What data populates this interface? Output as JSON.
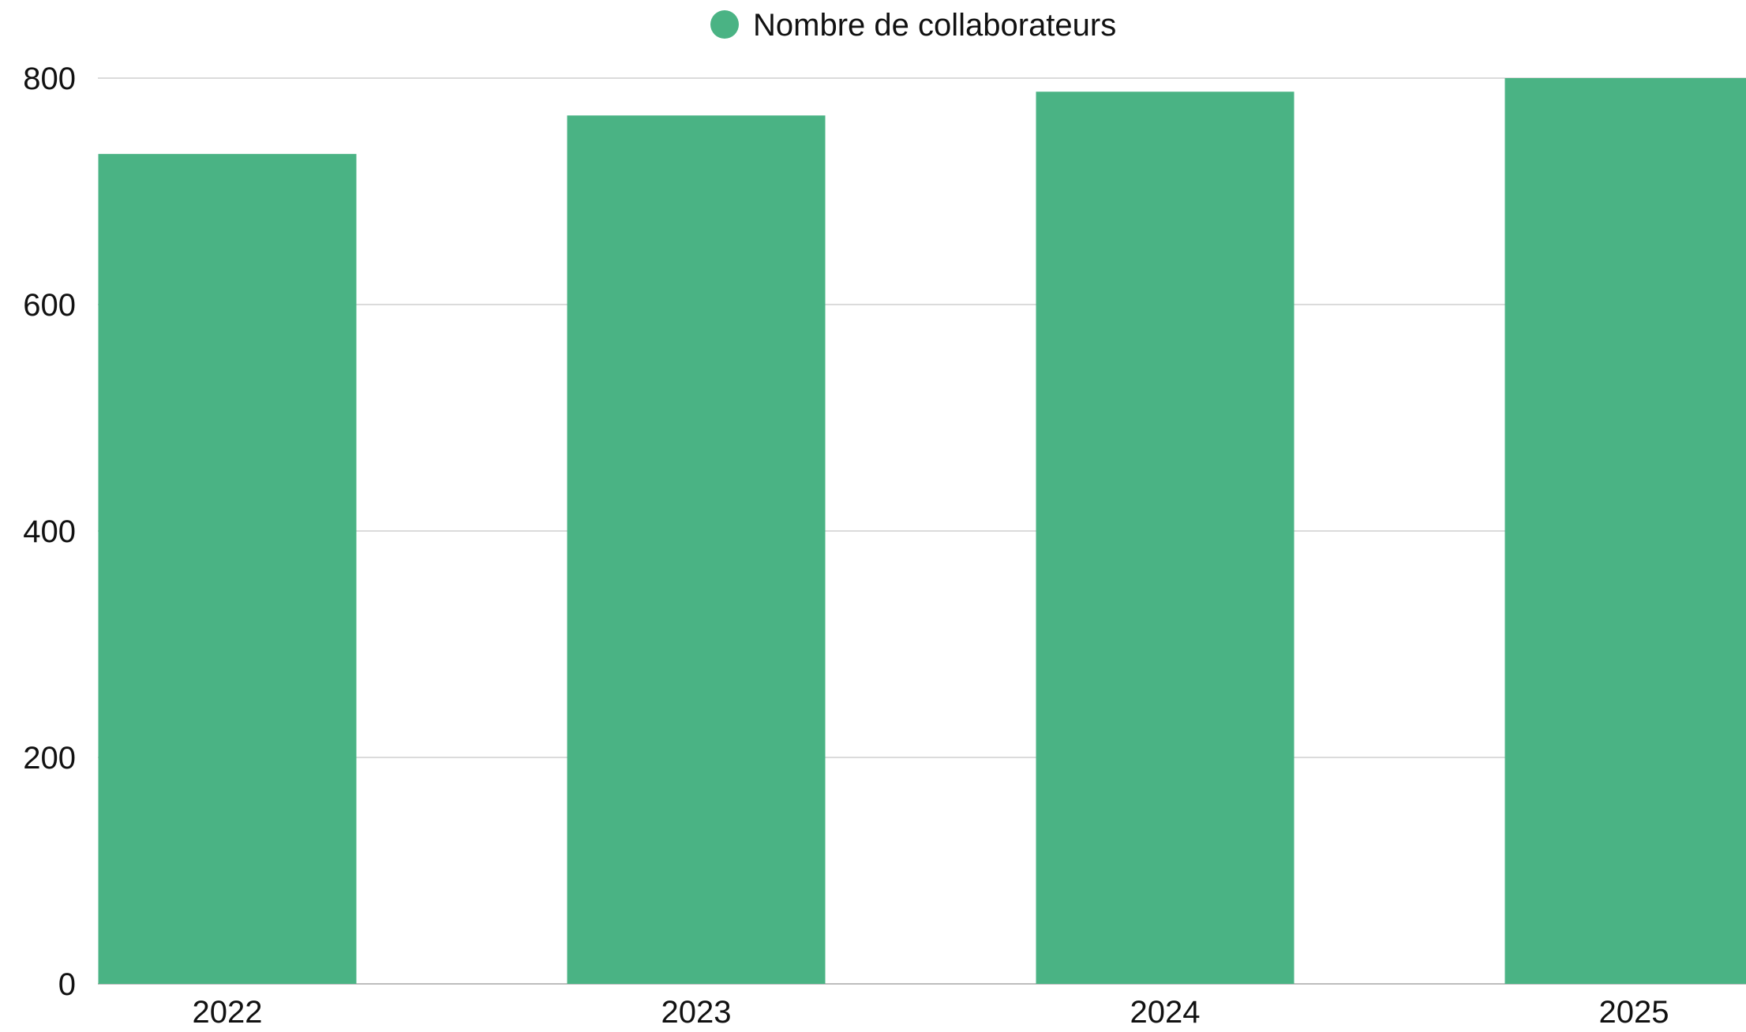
{
  "chart_data": {
    "type": "bar",
    "categories": [
      "2022",
      "2023",
      "2024",
      "2025"
    ],
    "series": [
      {
        "name": "Nombre de collaborateurs",
        "values": [
          733,
          767,
          788,
          800
        ],
        "color": "#4ab384"
      }
    ],
    "title": "",
    "xlabel": "",
    "ylabel": "",
    "ylim": [
      0,
      800
    ],
    "yticks": [
      "0",
      "200",
      "400",
      "600",
      "800"
    ],
    "grid": true,
    "legend": "top-center"
  }
}
